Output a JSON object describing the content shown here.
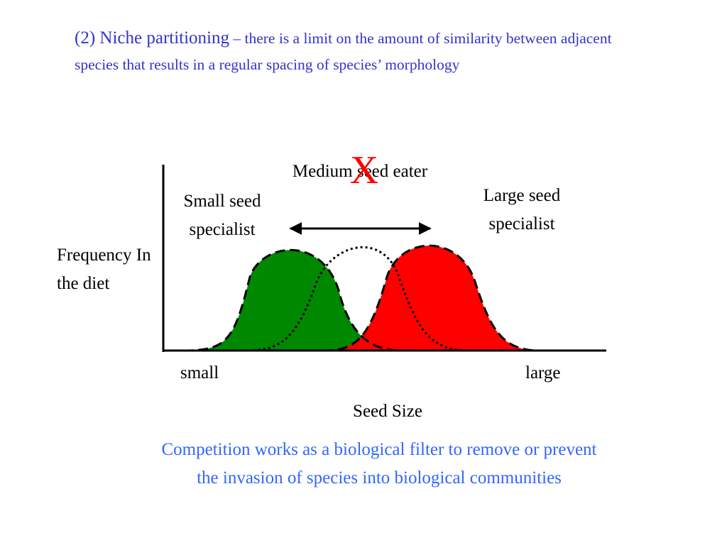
{
  "heading": {
    "lead": "(2) Niche partitioning",
    "rest": " – there is a limit on the amount of similarity between adjacent species that results in a regular spacing of species’ morphology"
  },
  "labels": {
    "small_specialist": "Small seed specialist",
    "medium_eater": "Medium seed eater",
    "large_specialist": "Large seed specialist",
    "y_axis": "Frequency In the diet",
    "x_small": "small",
    "x_large": "large",
    "x_axis": "Seed Size",
    "exclusion_mark": "X"
  },
  "colors": {
    "small_curve_fill": "#008800",
    "large_curve_fill": "#ff0000",
    "heading_text": "#3333cc",
    "footer_text": "#3366ff",
    "exclusion_mark": "#ff0000"
  },
  "footer": {
    "text": "Competition works as a biological filter to remove or prevent the invasion of species into biological communities"
  }
}
